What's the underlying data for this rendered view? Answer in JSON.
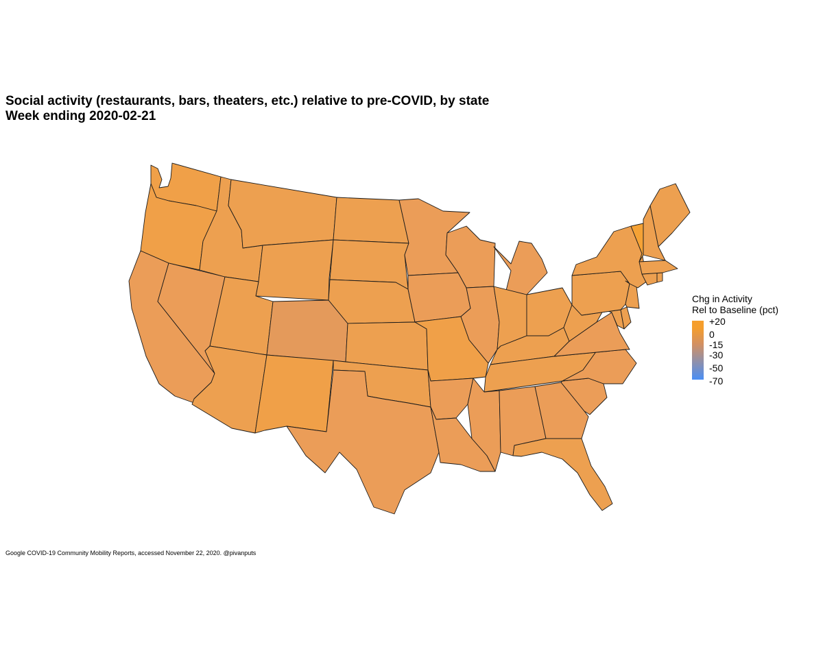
{
  "title": {
    "line1": "Social activity (restaurants, bars, theaters, etc.) relative to pre-COVID, by state",
    "line2": "Week ending 2020-02-21"
  },
  "legend": {
    "title_line1": "Chg in Activity",
    "title_line2": "Rel to Baseline (pct)",
    "labels": [
      "+20",
      "0",
      "-15",
      "-30",
      "-50",
      "-70"
    ],
    "colors": {
      "high": "#f59e2c",
      "mid": "#d29063",
      "low": "#4a8ff5"
    }
  },
  "caption": "Google COVID-19 Community Mobility Reports, accessed November 22, 2020. @pivanputs",
  "map": {
    "border_color": "#1a1a1a",
    "default_fill": "#eda050",
    "states": [
      {
        "name": "Washington",
        "fill": "#f0a048"
      },
      {
        "name": "Oregon",
        "fill": "#f0a048"
      },
      {
        "name": "California",
        "fill": "#eb9d58"
      },
      {
        "name": "Nevada",
        "fill": "#eb9d58"
      },
      {
        "name": "Idaho",
        "fill": "#eda050"
      },
      {
        "name": "Montana",
        "fill": "#eda050"
      },
      {
        "name": "Wyoming",
        "fill": "#eda050"
      },
      {
        "name": "Utah",
        "fill": "#eda050"
      },
      {
        "name": "Arizona",
        "fill": "#eda050"
      },
      {
        "name": "Colorado",
        "fill": "#e49a5b"
      },
      {
        "name": "New Mexico",
        "fill": "#f0a048"
      },
      {
        "name": "North Dakota",
        "fill": "#eda050"
      },
      {
        "name": "South Dakota",
        "fill": "#eda050"
      },
      {
        "name": "Nebraska",
        "fill": "#eda050"
      },
      {
        "name": "Kansas",
        "fill": "#eda050"
      },
      {
        "name": "Oklahoma",
        "fill": "#eda050"
      },
      {
        "name": "Texas",
        "fill": "#eb9d58"
      },
      {
        "name": "Minnesota",
        "fill": "#eb9d58"
      },
      {
        "name": "Iowa",
        "fill": "#eb9d58"
      },
      {
        "name": "Missouri",
        "fill": "#f0a048"
      },
      {
        "name": "Arkansas",
        "fill": "#eb9d58"
      },
      {
        "name": "Louisiana",
        "fill": "#eb9d58"
      },
      {
        "name": "Wisconsin",
        "fill": "#eb9d58"
      },
      {
        "name": "Illinois",
        "fill": "#eb9d58"
      },
      {
        "name": "Michigan",
        "fill": "#eb9d58"
      },
      {
        "name": "Indiana",
        "fill": "#eda050"
      },
      {
        "name": "Ohio",
        "fill": "#eda050"
      },
      {
        "name": "Kentucky",
        "fill": "#eda050"
      },
      {
        "name": "Tennessee",
        "fill": "#eda050"
      },
      {
        "name": "Mississippi",
        "fill": "#eb9d58"
      },
      {
        "name": "Alabama",
        "fill": "#eb9d58"
      },
      {
        "name": "Georgia",
        "fill": "#eb9d58"
      },
      {
        "name": "Florida",
        "fill": "#eda050"
      },
      {
        "name": "South Carolina",
        "fill": "#eb9d58"
      },
      {
        "name": "North Carolina",
        "fill": "#eb9d58"
      },
      {
        "name": "Virginia",
        "fill": "#eb9d58"
      },
      {
        "name": "West Virginia",
        "fill": "#eda050"
      },
      {
        "name": "Maryland",
        "fill": "#eda050"
      },
      {
        "name": "Delaware",
        "fill": "#eda050"
      },
      {
        "name": "Pennsylvania",
        "fill": "#eda050"
      },
      {
        "name": "New Jersey",
        "fill": "#eda050"
      },
      {
        "name": "New York",
        "fill": "#eda050"
      },
      {
        "name": "Connecticut",
        "fill": "#eda050"
      },
      {
        "name": "Rhode Island",
        "fill": "#eda050"
      },
      {
        "name": "Massachusetts",
        "fill": "#eda050"
      },
      {
        "name": "Vermont",
        "fill": "#f5a235"
      },
      {
        "name": "New Hampshire",
        "fill": "#eda050"
      },
      {
        "name": "Maine",
        "fill": "#eda050"
      }
    ]
  }
}
